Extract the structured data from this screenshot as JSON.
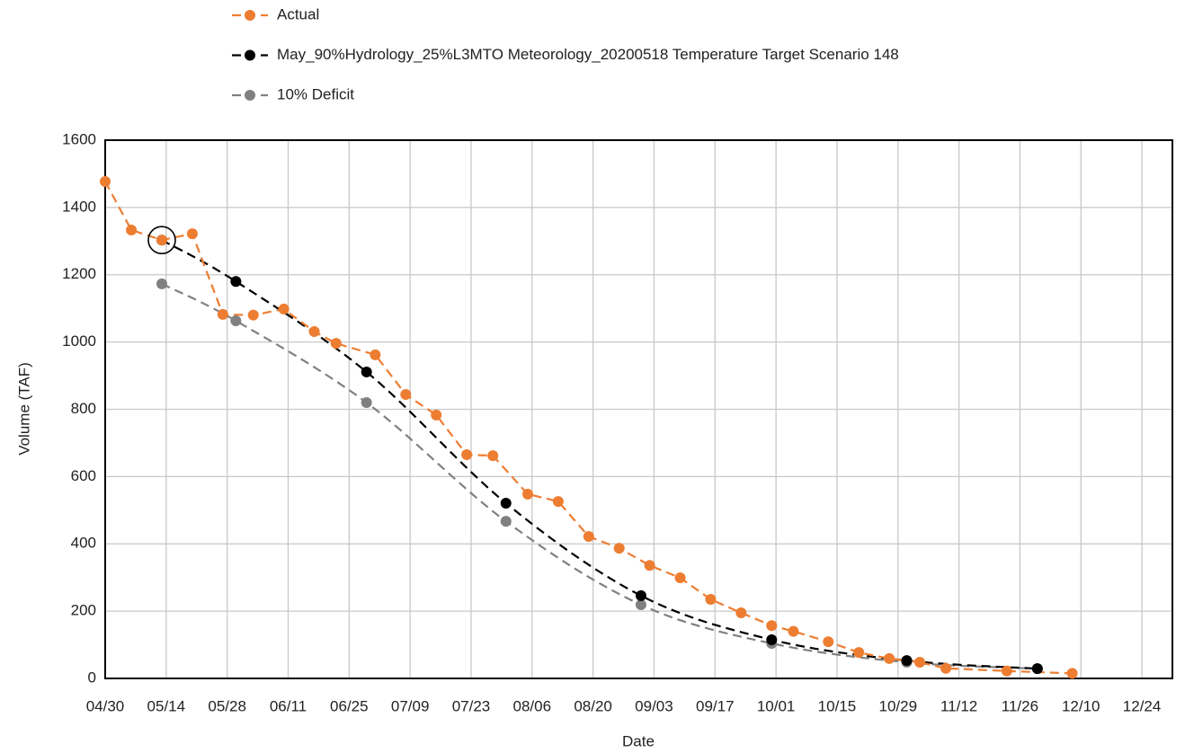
{
  "chart_data": {
    "type": "line",
    "x_label": "Date",
    "y_label": "Volume (TAF)",
    "xlim": [
      "04/30",
      "12/31"
    ],
    "xticks": [
      "04/30",
      "05/14",
      "05/28",
      "06/11",
      "06/25",
      "07/09",
      "07/23",
      "08/06",
      "08/20",
      "09/03",
      "09/17",
      "10/01",
      "10/15",
      "10/29",
      "11/12",
      "11/26",
      "12/10",
      "12/24"
    ],
    "ylim": [
      0,
      1600
    ],
    "yticks": [
      0,
      200,
      400,
      600,
      800,
      1000,
      1200,
      1400,
      1600
    ],
    "grid": true,
    "legend": "top",
    "series": [
      {
        "name": "Actual",
        "color": "#ed7d31",
        "smooth": false,
        "x": [
          "04/30",
          "05/06",
          "05/13",
          "05/20",
          "05/27",
          "06/03",
          "06/10",
          "06/17",
          "06/22",
          "07/01",
          "07/08",
          "07/15",
          "07/22",
          "07/28",
          "08/05",
          "08/12",
          "08/19",
          "08/26",
          "09/02",
          "09/09",
          "09/16",
          "09/23",
          "09/30",
          "10/05",
          "10/13",
          "10/20",
          "10/27",
          "11/03",
          "11/09",
          "11/23",
          "12/08"
        ],
        "values": [
          1477,
          1333,
          1303,
          1322,
          1082,
          1080,
          1098,
          1031,
          996,
          962,
          844,
          783,
          665,
          662,
          548,
          526,
          422,
          387,
          336,
          299,
          235,
          195,
          157,
          140,
          109,
          77,
          59,
          48,
          30,
          22,
          15
        ]
      },
      {
        "name": "May_90%Hydrology_25%L3MTO Meteorology_20200518 Temperature Target Scenario 148",
        "color": "#000000",
        "smooth": true,
        "x": [
          "05/13",
          "05/30",
          "06/29",
          "07/31",
          "08/31",
          "09/30",
          "10/31",
          "11/30"
        ],
        "values": [
          1303,
          1180,
          911,
          521,
          246,
          115,
          53,
          29
        ]
      },
      {
        "name": "10% Deficit",
        "color": "#808080",
        "smooth": true,
        "x": [
          "05/13",
          "05/30",
          "06/29",
          "07/31",
          "08/31",
          "09/30",
          "10/31",
          "11/30"
        ],
        "values": [
          1173,
          1063,
          820,
          467,
          219,
          104,
          48,
          29
        ]
      }
    ]
  }
}
